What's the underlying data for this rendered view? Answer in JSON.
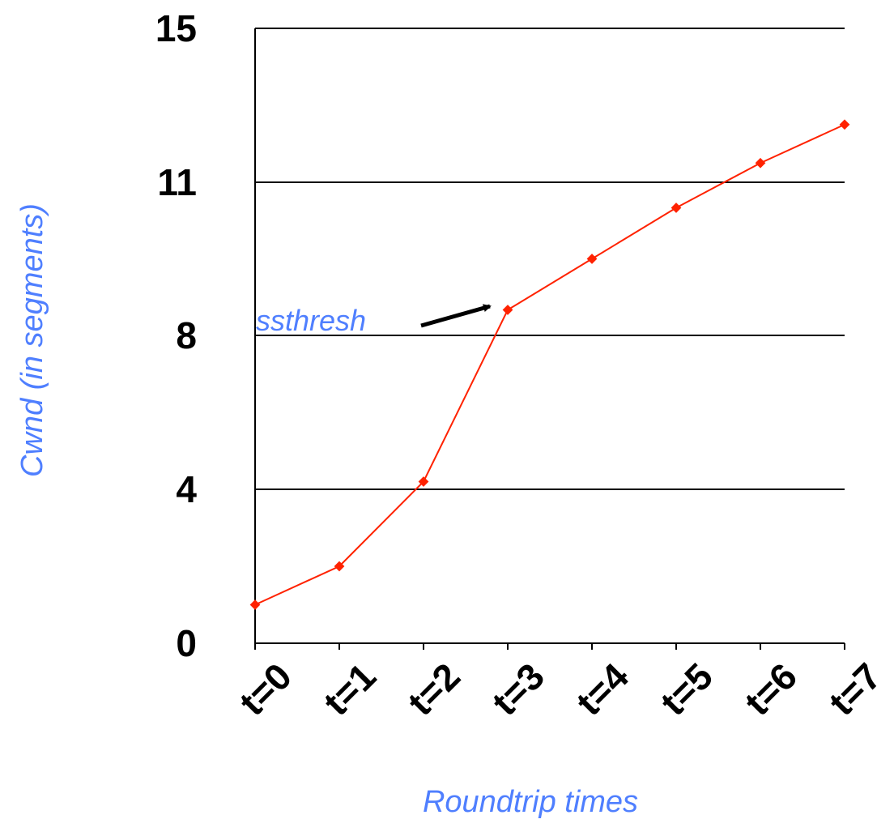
{
  "chart_data": {
    "type": "line",
    "title": "",
    "xlabel": "Roundtrip times",
    "ylabel": "Cwnd (in segments)",
    "categories": [
      "t=0",
      "t=1",
      "t=2",
      "t=3",
      "t=4",
      "t=5",
      "t=6",
      "t=7"
    ],
    "y_ticks": [
      "0",
      "4",
      "8",
      "11",
      "15"
    ],
    "ylim": [
      0,
      15
    ],
    "grid": true,
    "series": [
      {
        "values": [
          1,
          2,
          4.2,
          8.5,
          9.5,
          10.5,
          11.5,
          12.5
        ]
      }
    ],
    "annotation": {
      "text": "ssthresh",
      "points_to": "t=3"
    },
    "colors": {
      "series": "#ff2200",
      "axis_label": "#4f7fff",
      "annotation_text": "#4f7fff",
      "grid": "#000000",
      "arrow": "#000000"
    }
  }
}
